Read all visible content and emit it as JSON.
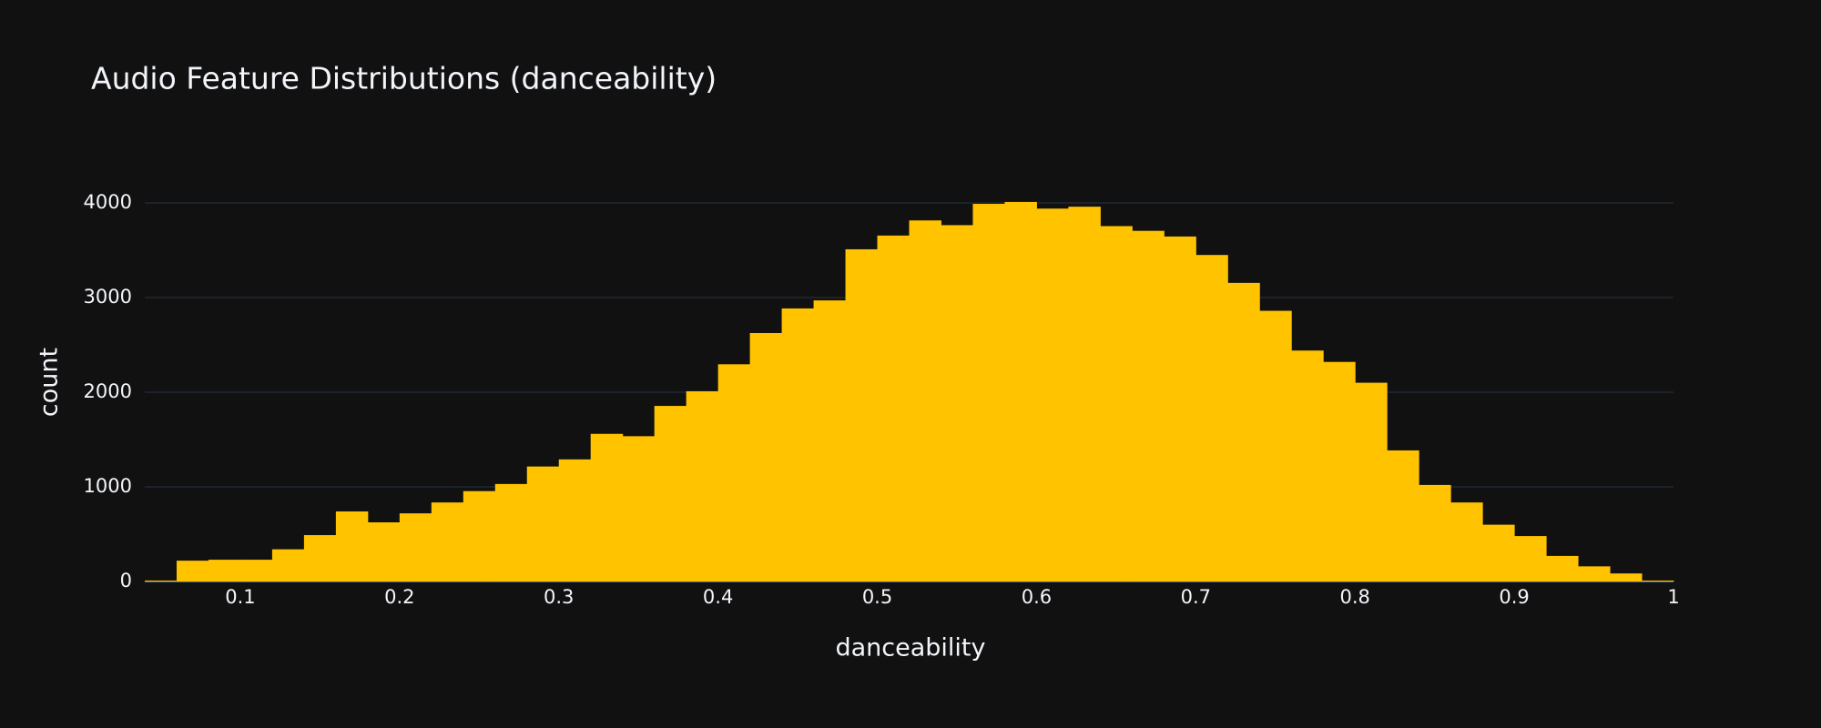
{
  "chart_data": {
    "type": "histogram",
    "title": "Audio Feature Distributions (danceability)",
    "x_label": "danceability",
    "y_label": "count",
    "color": "#ffc300",
    "bins": [
      0.04,
      0.06,
      0.08,
      0.1,
      0.12,
      0.14,
      0.16,
      0.18,
      0.2,
      0.22,
      0.24,
      0.26,
      0.28,
      0.3,
      0.32,
      0.34,
      0.36,
      0.38,
      0.4,
      0.42,
      0.44,
      0.46,
      0.48,
      0.5,
      0.52,
      0.54,
      0.56,
      0.58,
      0.6,
      0.62,
      0.64,
      0.66,
      0.68,
      0.7,
      0.72,
      0.74,
      0.76,
      0.78,
      0.8,
      0.82,
      0.84,
      0.86,
      0.88,
      0.9,
      0.92,
      0.94,
      0.96,
      0.98,
      1.0
    ],
    "values": [
      10,
      220,
      230,
      230,
      340,
      490,
      740,
      625,
      720,
      835,
      955,
      1030,
      1215,
      1290,
      1560,
      1535,
      1855,
      2010,
      2295,
      2625,
      2885,
      2970,
      3510,
      3655,
      3815,
      3765,
      3990,
      4010,
      3940,
      3960,
      3755,
      3705,
      3645,
      3450,
      3155,
      2860,
      2440,
      2320,
      2100,
      1385,
      1020,
      835,
      600,
      480,
      270,
      160,
      85,
      10
    ],
    "xlim": [
      0.04,
      1.0
    ],
    "xticks": [
      0.1,
      0.2,
      0.3,
      0.4,
      0.5,
      0.6,
      0.7,
      0.8,
      0.9,
      1
    ],
    "ylim": [
      0,
      4221
    ],
    "yticks": [
      0,
      1000,
      2000,
      3000,
      4000
    ],
    "grid": true
  }
}
